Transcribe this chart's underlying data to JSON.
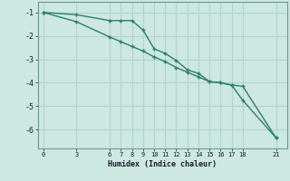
{
  "xlabel": "Humidex (Indice chaleur)",
  "bg_color": "#cce8e0",
  "line_color": "#2e7d6e",
  "grid_color": "#b0d4cc",
  "line1_x": [
    0,
    3,
    6,
    7,
    8,
    9,
    10,
    11,
    12,
    13,
    14,
    15,
    16,
    17,
    18,
    21
  ],
  "line1_y": [
    -1.0,
    -1.1,
    -1.35,
    -1.35,
    -1.35,
    -1.75,
    -2.55,
    -2.75,
    -3.05,
    -3.45,
    -3.6,
    -3.95,
    -4.0,
    -4.1,
    -4.15,
    -6.35
  ],
  "line2_x": [
    0,
    3,
    6,
    7,
    8,
    9,
    10,
    11,
    12,
    13,
    14,
    15,
    16,
    17,
    18,
    21
  ],
  "line2_y": [
    -1.0,
    -1.4,
    -2.05,
    -2.25,
    -2.45,
    -2.65,
    -2.9,
    -3.1,
    -3.35,
    -3.55,
    -3.75,
    -3.95,
    -4.0,
    -4.1,
    -4.75,
    -6.35
  ],
  "xticks": [
    0,
    3,
    6,
    7,
    8,
    9,
    10,
    11,
    12,
    13,
    14,
    15,
    16,
    17,
    18,
    21
  ],
  "yticks": [
    -1,
    -2,
    -3,
    -4,
    -5,
    -6
  ],
  "ylim": [
    -6.8,
    -0.55
  ],
  "xlim": [
    -0.5,
    22.0
  ]
}
